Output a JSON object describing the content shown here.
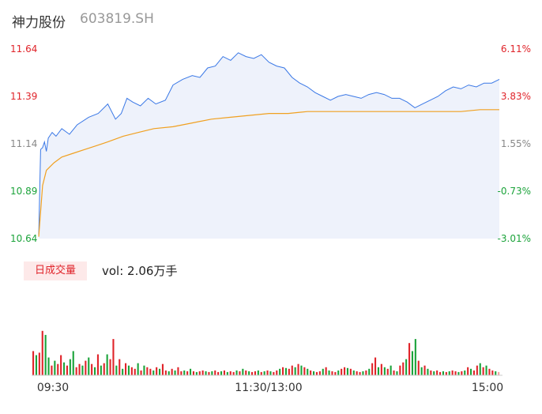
{
  "header": {
    "name": "神力股份",
    "code": "603819.SH"
  },
  "badge": {
    "label": "日成交量"
  },
  "volume": {
    "text": "vol: 2.06万手"
  },
  "colors": {
    "up": "#e0242a",
    "down": "#1ba33a",
    "neutral": "#888888",
    "price_line": "#3a78e6",
    "avg_line": "#f0a020",
    "area_fill": "#eef2fb"
  },
  "chart_data": [
    {
      "type": "line",
      "title": "",
      "ylim": [
        10.64,
        11.64
      ],
      "price_ticks": [
        "11.64",
        "11.39",
        "11.14",
        "10.89",
        "10.64"
      ],
      "pct_ticks": [
        "6.11%",
        "3.83%",
        "1.55%",
        "-0.73%",
        "-3.01%"
      ],
      "x_labels": [
        "09:30",
        "11:30/13:00",
        "15:00"
      ],
      "series": [
        {
          "role": "price",
          "points": [
            [
              0,
              10.65
            ],
            [
              1,
              11.11
            ],
            [
              2,
              11.12
            ],
            [
              3,
              11.15
            ],
            [
              4,
              11.1
            ],
            [
              5,
              11.17
            ],
            [
              7,
              11.2
            ],
            [
              9,
              11.18
            ],
            [
              12,
              11.22
            ],
            [
              16,
              11.19
            ],
            [
              20,
              11.24
            ],
            [
              26,
              11.28
            ],
            [
              31,
              11.3
            ],
            [
              36,
              11.35
            ],
            [
              40,
              11.27
            ],
            [
              43,
              11.3
            ],
            [
              46,
              11.38
            ],
            [
              49,
              11.36
            ],
            [
              53,
              11.34
            ],
            [
              57,
              11.38
            ],
            [
              61,
              11.35
            ],
            [
              66,
              11.37
            ],
            [
              70,
              11.45
            ],
            [
              75,
              11.48
            ],
            [
              80,
              11.5
            ],
            [
              84,
              11.49
            ],
            [
              88,
              11.54
            ],
            [
              92,
              11.55
            ],
            [
              96,
              11.6
            ],
            [
              100,
              11.58
            ],
            [
              104,
              11.62
            ],
            [
              108,
              11.6
            ],
            [
              112,
              11.59
            ],
            [
              116,
              11.61
            ],
            [
              120,
              11.57
            ],
            [
              124,
              11.55
            ],
            [
              128,
              11.54
            ],
            [
              132,
              11.49
            ],
            [
              136,
              11.46
            ],
            [
              140,
              11.44
            ],
            [
              144,
              11.41
            ],
            [
              148,
              11.39
            ],
            [
              152,
              11.37
            ],
            [
              156,
              11.39
            ],
            [
              160,
              11.4
            ],
            [
              164,
              11.39
            ],
            [
              168,
              11.38
            ],
            [
              172,
              11.4
            ],
            [
              176,
              11.41
            ],
            [
              180,
              11.4
            ],
            [
              184,
              11.38
            ],
            [
              188,
              11.38
            ],
            [
              192,
              11.36
            ],
            [
              196,
              11.33
            ],
            [
              200,
              11.35
            ],
            [
              204,
              11.37
            ],
            [
              208,
              11.39
            ],
            [
              212,
              11.42
            ],
            [
              216,
              11.44
            ],
            [
              220,
              11.43
            ],
            [
              224,
              11.45
            ],
            [
              228,
              11.44
            ],
            [
              232,
              11.46
            ],
            [
              236,
              11.46
            ],
            [
              240,
              11.48
            ]
          ]
        },
        {
          "role": "average",
          "points": [
            [
              0,
              10.65
            ],
            [
              2,
              10.92
            ],
            [
              4,
              11.0
            ],
            [
              8,
              11.04
            ],
            [
              12,
              11.07
            ],
            [
              18,
              11.09
            ],
            [
              24,
              11.11
            ],
            [
              30,
              11.13
            ],
            [
              36,
              11.15
            ],
            [
              44,
              11.18
            ],
            [
              52,
              11.2
            ],
            [
              60,
              11.22
            ],
            [
              70,
              11.23
            ],
            [
              80,
              11.25
            ],
            [
              90,
              11.27
            ],
            [
              100,
              11.28
            ],
            [
              110,
              11.29
            ],
            [
              120,
              11.3
            ],
            [
              130,
              11.3
            ],
            [
              140,
              11.31
            ],
            [
              150,
              11.31
            ],
            [
              160,
              11.31
            ],
            [
              170,
              11.31
            ],
            [
              180,
              11.31
            ],
            [
              190,
              11.31
            ],
            [
              200,
              11.31
            ],
            [
              210,
              11.31
            ],
            [
              220,
              11.31
            ],
            [
              230,
              11.32
            ],
            [
              240,
              11.32
            ]
          ]
        }
      ]
    },
    {
      "type": "bar",
      "title": "",
      "bars": [
        {
          "v": 0.3,
          "d": "up"
        },
        {
          "v": 0.25,
          "d": "down"
        },
        {
          "v": 0.28,
          "d": "up"
        },
        {
          "v": 0.55,
          "d": "up"
        },
        {
          "v": 0.5,
          "d": "down"
        },
        {
          "v": 0.22,
          "d": "down"
        },
        {
          "v": 0.12,
          "d": "up"
        },
        {
          "v": 0.18,
          "d": "down"
        },
        {
          "v": 0.14,
          "d": "up"
        },
        {
          "v": 0.25,
          "d": "up"
        },
        {
          "v": 0.16,
          "d": "down"
        },
        {
          "v": 0.12,
          "d": "up"
        },
        {
          "v": 0.2,
          "d": "down"
        },
        {
          "v": 0.3,
          "d": "down"
        },
        {
          "v": 0.1,
          "d": "up"
        },
        {
          "v": 0.14,
          "d": "up"
        },
        {
          "v": 0.12,
          "d": "down"
        },
        {
          "v": 0.18,
          "d": "up"
        },
        {
          "v": 0.22,
          "d": "down"
        },
        {
          "v": 0.14,
          "d": "up"
        },
        {
          "v": 0.1,
          "d": "down"
        },
        {
          "v": 0.26,
          "d": "up"
        },
        {
          "v": 0.12,
          "d": "down"
        },
        {
          "v": 0.15,
          "d": "up"
        },
        {
          "v": 0.26,
          "d": "down"
        },
        {
          "v": 0.2,
          "d": "up"
        },
        {
          "v": 0.45,
          "d": "up"
        },
        {
          "v": 0.12,
          "d": "down"
        },
        {
          "v": 0.2,
          "d": "up"
        },
        {
          "v": 0.08,
          "d": "down"
        },
        {
          "v": 0.15,
          "d": "up"
        },
        {
          "v": 0.12,
          "d": "down"
        },
        {
          "v": 0.1,
          "d": "up"
        },
        {
          "v": 0.08,
          "d": "up"
        },
        {
          "v": 0.15,
          "d": "down"
        },
        {
          "v": 0.06,
          "d": "up"
        },
        {
          "v": 0.12,
          "d": "down"
        },
        {
          "v": 0.1,
          "d": "up"
        },
        {
          "v": 0.08,
          "d": "up"
        },
        {
          "v": 0.06,
          "d": "down"
        },
        {
          "v": 0.1,
          "d": "up"
        },
        {
          "v": 0.08,
          "d": "down"
        },
        {
          "v": 0.14,
          "d": "up"
        },
        {
          "v": 0.06,
          "d": "up"
        },
        {
          "v": 0.05,
          "d": "down"
        },
        {
          "v": 0.08,
          "d": "up"
        },
        {
          "v": 0.06,
          "d": "down"
        },
        {
          "v": 0.1,
          "d": "up"
        },
        {
          "v": 0.05,
          "d": "up"
        },
        {
          "v": 0.06,
          "d": "down"
        },
        {
          "v": 0.05,
          "d": "up"
        },
        {
          "v": 0.08,
          "d": "down"
        },
        {
          "v": 0.05,
          "d": "up"
        },
        {
          "v": 0.04,
          "d": "down"
        },
        {
          "v": 0.05,
          "d": "up"
        },
        {
          "v": 0.06,
          "d": "up"
        },
        {
          "v": 0.05,
          "d": "down"
        },
        {
          "v": 0.04,
          "d": "up"
        },
        {
          "v": 0.05,
          "d": "down"
        },
        {
          "v": 0.06,
          "d": "up"
        },
        {
          "v": 0.04,
          "d": "up"
        },
        {
          "v": 0.05,
          "d": "down"
        },
        {
          "v": 0.06,
          "d": "up"
        },
        {
          "v": 0.04,
          "d": "down"
        },
        {
          "v": 0.05,
          "d": "up"
        },
        {
          "v": 0.04,
          "d": "up"
        },
        {
          "v": 0.06,
          "d": "down"
        },
        {
          "v": 0.05,
          "d": "up"
        },
        {
          "v": 0.08,
          "d": "down"
        },
        {
          "v": 0.06,
          "d": "up"
        },
        {
          "v": 0.05,
          "d": "down"
        },
        {
          "v": 0.04,
          "d": "up"
        },
        {
          "v": 0.05,
          "d": "up"
        },
        {
          "v": 0.06,
          "d": "down"
        },
        {
          "v": 0.04,
          "d": "up"
        },
        {
          "v": 0.05,
          "d": "down"
        },
        {
          "v": 0.06,
          "d": "up"
        },
        {
          "v": 0.05,
          "d": "down"
        },
        {
          "v": 0.04,
          "d": "up"
        },
        {
          "v": 0.06,
          "d": "up"
        },
        {
          "v": 0.08,
          "d": "down"
        },
        {
          "v": 0.1,
          "d": "up"
        },
        {
          "v": 0.09,
          "d": "down"
        },
        {
          "v": 0.08,
          "d": "up"
        },
        {
          "v": 0.12,
          "d": "up"
        },
        {
          "v": 0.1,
          "d": "down"
        },
        {
          "v": 0.14,
          "d": "up"
        },
        {
          "v": 0.12,
          "d": "down"
        },
        {
          "v": 0.1,
          "d": "up"
        },
        {
          "v": 0.08,
          "d": "down"
        },
        {
          "v": 0.06,
          "d": "up"
        },
        {
          "v": 0.05,
          "d": "down"
        },
        {
          "v": 0.04,
          "d": "up"
        },
        {
          "v": 0.05,
          "d": "up"
        },
        {
          "v": 0.08,
          "d": "down"
        },
        {
          "v": 0.1,
          "d": "up"
        },
        {
          "v": 0.06,
          "d": "down"
        },
        {
          "v": 0.05,
          "d": "up"
        },
        {
          "v": 0.04,
          "d": "up"
        },
        {
          "v": 0.06,
          "d": "down"
        },
        {
          "v": 0.08,
          "d": "up"
        },
        {
          "v": 0.1,
          "d": "up"
        },
        {
          "v": 0.09,
          "d": "down"
        },
        {
          "v": 0.08,
          "d": "up"
        },
        {
          "v": 0.06,
          "d": "down"
        },
        {
          "v": 0.05,
          "d": "up"
        },
        {
          "v": 0.04,
          "d": "up"
        },
        {
          "v": 0.05,
          "d": "down"
        },
        {
          "v": 0.06,
          "d": "up"
        },
        {
          "v": 0.08,
          "d": "down"
        },
        {
          "v": 0.15,
          "d": "up"
        },
        {
          "v": 0.22,
          "d": "up"
        },
        {
          "v": 0.1,
          "d": "down"
        },
        {
          "v": 0.14,
          "d": "up"
        },
        {
          "v": 0.1,
          "d": "down"
        },
        {
          "v": 0.08,
          "d": "up"
        },
        {
          "v": 0.12,
          "d": "down"
        },
        {
          "v": 0.06,
          "d": "up"
        },
        {
          "v": 0.05,
          "d": "down"
        },
        {
          "v": 0.12,
          "d": "up"
        },
        {
          "v": 0.16,
          "d": "up"
        },
        {
          "v": 0.2,
          "d": "down"
        },
        {
          "v": 0.4,
          "d": "up"
        },
        {
          "v": 0.3,
          "d": "down"
        },
        {
          "v": 0.45,
          "d": "down"
        },
        {
          "v": 0.18,
          "d": "up"
        },
        {
          "v": 0.1,
          "d": "down"
        },
        {
          "v": 0.12,
          "d": "up"
        },
        {
          "v": 0.08,
          "d": "down"
        },
        {
          "v": 0.06,
          "d": "up"
        },
        {
          "v": 0.05,
          "d": "down"
        },
        {
          "v": 0.06,
          "d": "up"
        },
        {
          "v": 0.04,
          "d": "up"
        },
        {
          "v": 0.05,
          "d": "down"
        },
        {
          "v": 0.04,
          "d": "up"
        },
        {
          "v": 0.05,
          "d": "down"
        },
        {
          "v": 0.06,
          "d": "up"
        },
        {
          "v": 0.05,
          "d": "up"
        },
        {
          "v": 0.04,
          "d": "down"
        },
        {
          "v": 0.05,
          "d": "up"
        },
        {
          "v": 0.06,
          "d": "down"
        },
        {
          "v": 0.1,
          "d": "up"
        },
        {
          "v": 0.08,
          "d": "down"
        },
        {
          "v": 0.06,
          "d": "up"
        },
        {
          "v": 0.12,
          "d": "up"
        },
        {
          "v": 0.15,
          "d": "down"
        },
        {
          "v": 0.1,
          "d": "up"
        },
        {
          "v": 0.12,
          "d": "down"
        },
        {
          "v": 0.08,
          "d": "up"
        },
        {
          "v": 0.06,
          "d": "up"
        },
        {
          "v": 0.05,
          "d": "down"
        },
        {
          "v": 0.04,
          "d": "neutral"
        }
      ]
    }
  ]
}
